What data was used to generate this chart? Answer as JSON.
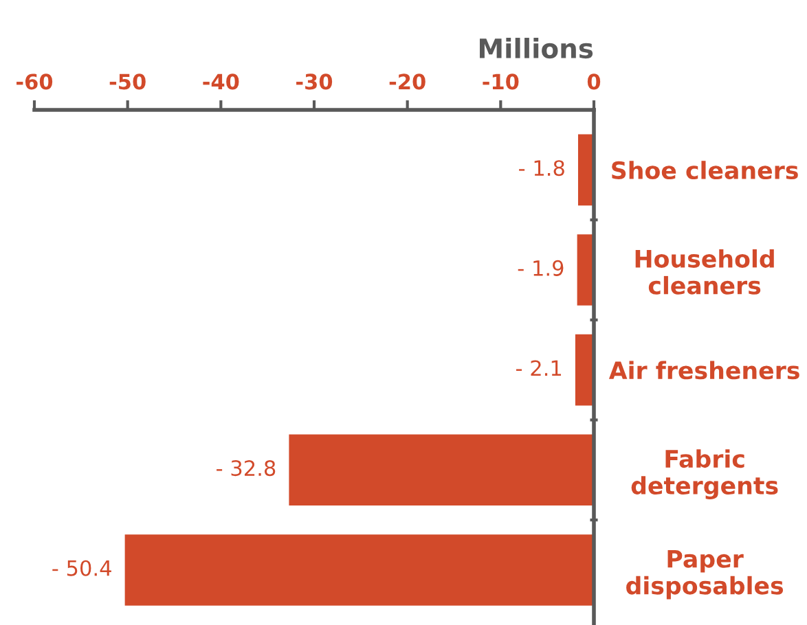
{
  "chart_data": {
    "type": "bar",
    "orientation": "horizontal",
    "xlabel": "Millions",
    "categories": [
      "Shoe cleaners",
      "Household\ncleaners",
      "Air fresheners",
      "Fabric\ndetergents",
      "Paper\ndisposables"
    ],
    "values": [
      -1.8,
      -1.9,
      -2.1,
      -32.8,
      -50.4
    ],
    "value_labels": [
      "- 1.8",
      "- 1.9",
      "- 2.1",
      "- 32.8",
      "- 50.4"
    ],
    "color": "#d24a2a",
    "xlim": [
      -60,
      0
    ],
    "xticks": [
      -60,
      -50,
      -40,
      -30,
      -20,
      -10,
      0
    ],
    "grid": false,
    "legend": false
  }
}
